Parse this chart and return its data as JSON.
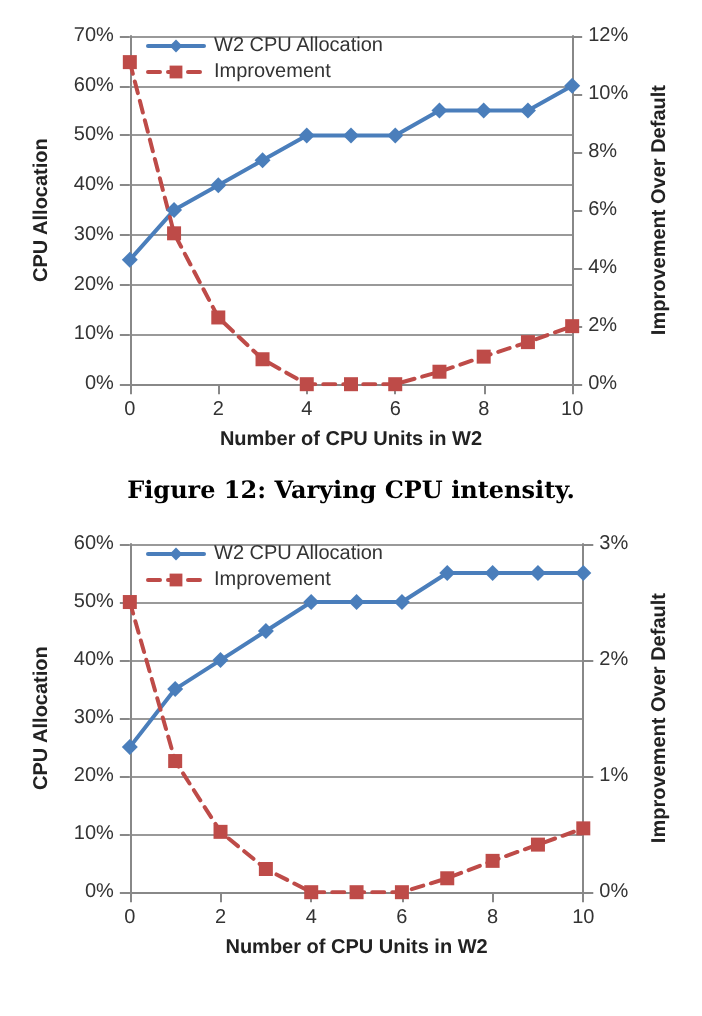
{
  "chart_data": [
    {
      "type": "line",
      "xlabel": "Number of CPU Units in W2",
      "ylabel": "CPU Allocation",
      "y2label": "Improvement Over Default",
      "annotations": [
        "Figure 12: Varying CPU intensity."
      ],
      "x": [
        0,
        1,
        2,
        3,
        4,
        5,
        6,
        7,
        8,
        9,
        10
      ],
      "series": [
        {
          "name": "W2 CPU Allocation",
          "color": "#4a7ebb",
          "marker": "diamond",
          "line_style": "solid",
          "values": [
            25,
            35,
            40,
            45,
            50,
            50,
            50,
            55,
            55,
            55,
            60
          ]
        },
        {
          "name": "Improvement",
          "color": "#be4b48",
          "marker": "square",
          "line_style": "dashed",
          "axis": "y2",
          "values": [
            11.1,
            5.2,
            2.3,
            0.86,
            0,
            0,
            0,
            0.43,
            0.95,
            1.45,
            2.0
          ]
        }
      ],
      "xlim": [
        0,
        10
      ],
      "xticks": [
        0,
        2,
        4,
        6,
        8,
        10
      ],
      "ylim": [
        0,
        70
      ],
      "yticks": [
        {
          "value": 0,
          "label": "0%"
        },
        {
          "value": 10,
          "label": "10%"
        },
        {
          "value": 20,
          "label": "20%"
        },
        {
          "value": 30,
          "label": "30%"
        },
        {
          "value": 40,
          "label": "40%"
        },
        {
          "value": 50,
          "label": "50%"
        },
        {
          "value": 60,
          "label": "60%"
        },
        {
          "value": 70,
          "label": "70%"
        }
      ],
      "y2lim": [
        0,
        12
      ],
      "y2ticks": [
        {
          "value": 0,
          "label": "0%"
        },
        {
          "value": 2,
          "label": "2%"
        },
        {
          "value": 4,
          "label": "4%"
        },
        {
          "value": 6,
          "label": "6%"
        },
        {
          "value": 8,
          "label": "8%"
        },
        {
          "value": 10,
          "label": "10%"
        },
        {
          "value": 12,
          "label": "12%"
        }
      ],
      "grid": "y",
      "legend": "top left"
    },
    {
      "type": "line",
      "xlabel": "Number of CPU Units in W2",
      "ylabel": "CPU Allocation",
      "y2label": "Improvement Over Default",
      "x": [
        0,
        1,
        2,
        3,
        4,
        5,
        6,
        7,
        8,
        9,
        10
      ],
      "series": [
        {
          "name": "W2 CPU Allocation",
          "color": "#4a7ebb",
          "marker": "diamond",
          "line_style": "solid",
          "values": [
            25,
            35,
            40,
            45,
            50,
            50,
            50,
            55,
            55,
            55,
            55
          ]
        },
        {
          "name": "Improvement",
          "color": "#be4b48",
          "marker": "square",
          "line_style": "dashed",
          "axis": "y2",
          "values": [
            2.5,
            1.13,
            0.52,
            0.2,
            0,
            0,
            0,
            0.12,
            0.27,
            0.41,
            0.55
          ]
        }
      ],
      "xlim": [
        0,
        10
      ],
      "xticks": [
        0,
        2,
        4,
        6,
        8,
        10
      ],
      "ylim": [
        0,
        60
      ],
      "yticks": [
        {
          "value": 0,
          "label": "0%"
        },
        {
          "value": 10,
          "label": "10%"
        },
        {
          "value": 20,
          "label": "20%"
        },
        {
          "value": 30,
          "label": "30%"
        },
        {
          "value": 40,
          "label": "40%"
        },
        {
          "value": 50,
          "label": "50%"
        },
        {
          "value": 60,
          "label": "60%"
        }
      ],
      "y2lim": [
        0,
        3
      ],
      "y2ticks": [
        {
          "value": 0,
          "label": "0%"
        },
        {
          "value": 1,
          "label": "1%"
        },
        {
          "value": 2,
          "label": "2%"
        },
        {
          "value": 3,
          "label": "3%"
        }
      ],
      "grid": "y",
      "legend": "top left"
    }
  ]
}
